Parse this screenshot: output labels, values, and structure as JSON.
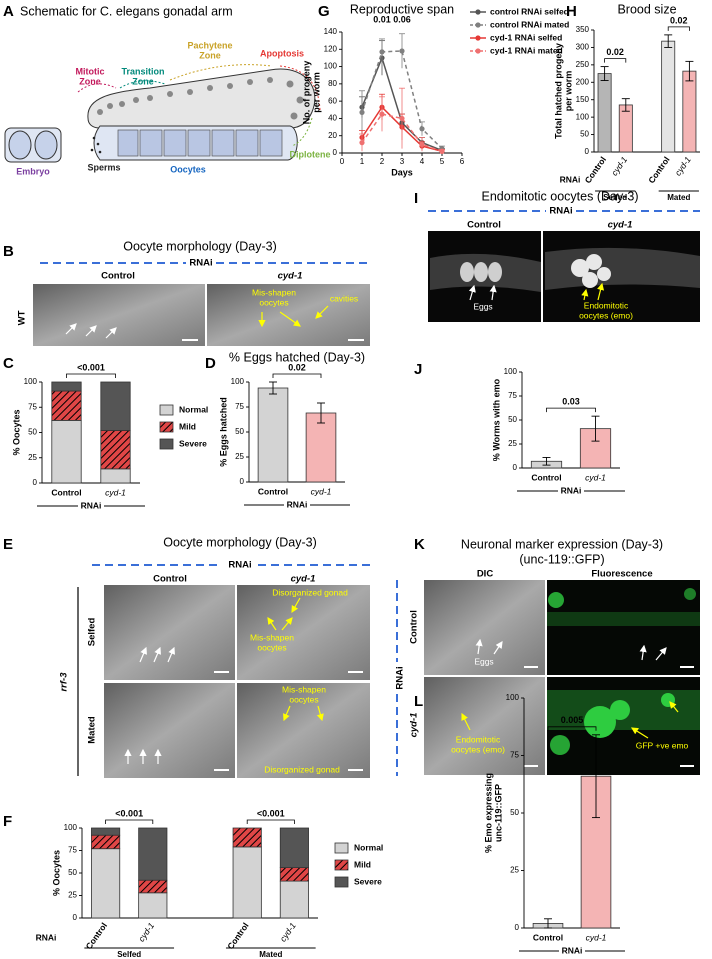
{
  "panel_labels": [
    "A",
    "B",
    "C",
    "D",
    "E",
    "F",
    "G",
    "H",
    "I",
    "J",
    "K",
    "L"
  ],
  "schematic": {
    "title": "Schematic for C. elegans gonadal arm",
    "labels": [
      [
        "Mitotic",
        "Zone"
      ],
      [
        "Transition",
        "Zone"
      ],
      [
        "Pachytene",
        "Zone"
      ],
      [
        "Apoptosis"
      ],
      [
        "Diplotene"
      ],
      [
        "Oocytes"
      ],
      [
        "Sperms"
      ],
      [
        "Embryo"
      ]
    ]
  },
  "panel_b": {
    "title": "Oocyte morphology (Day-3)",
    "rnai": "RNAi",
    "columns": [
      "Control",
      "cyd-1"
    ],
    "row_label": "WT",
    "annotations": [
      [
        "Mis-shapen",
        "oocytes"
      ],
      [
        "cavities"
      ]
    ]
  },
  "panel_i": {
    "title": "Endomitotic oocytes (Day-3)",
    "rnai": "RNAi",
    "columns": [
      "Control",
      "cyd-1"
    ],
    "annotations": [
      [
        "Eggs"
      ],
      [
        "Endomitotic",
        "oocytes (emo)"
      ]
    ]
  },
  "panel_e": {
    "title": "Oocyte morphology (Day-3)",
    "rnai": "RNAi",
    "columns": [
      "Control",
      "cyd-1"
    ],
    "rows": [
      "Selfed",
      "Mated"
    ],
    "strain": "rrf-3",
    "annotations": [
      [
        "Disorganized gonad"
      ],
      [
        "Mis-shapen",
        "oocytes"
      ],
      [
        "Mis-shapen",
        "oocytes"
      ],
      [
        "Disorganized gonad"
      ]
    ]
  },
  "panel_k": {
    "title": "Neuronal marker expression (Day-3)",
    "subtitle": "(unc-119::GFP)",
    "columns": [
      "DIC",
      "Fluorescence"
    ],
    "rows": [
      "Control",
      "cyd-1"
    ],
    "rnai": "RNAi",
    "annotations": [
      [
        "Eggs"
      ],
      [
        "Endomitotic",
        "oocytes (emo)"
      ],
      [
        "GFP +ve emo"
      ]
    ]
  },
  "chart_data": [
    {
      "type": "line",
      "title": "Reproductive span",
      "xlabel": "Days",
      "ylabel": [
        "No. of progeny",
        "per worm"
      ],
      "x": [
        1,
        2,
        3,
        4,
        5
      ],
      "xlim": [
        0,
        6
      ],
      "xticks": [
        0,
        1,
        2,
        3,
        4,
        5,
        6
      ],
      "ylim": [
        0,
        140
      ],
      "yticks": [
        0,
        20,
        40,
        60,
        80,
        100,
        120,
        140
      ],
      "series": [
        {
          "name": "control RNAi selfed",
          "color": "#555555",
          "dashed": false,
          "values": [
            53,
            110,
            35,
            12,
            3
          ],
          "errors": [
            12,
            20,
            10,
            6,
            2
          ]
        },
        {
          "name": "control RNAi mated",
          "color": "#808080",
          "dashed": true,
          "values": [
            47,
            117,
            118,
            28,
            5
          ],
          "errors": [
            25,
            15,
            20,
            8,
            3
          ]
        },
        {
          "name": "cyd-1 RNAi selfed",
          "color": "#e53935",
          "dashed": false,
          "values": [
            18,
            53,
            30,
            8,
            2
          ],
          "errors": [
            8,
            15,
            15,
            5,
            2
          ]
        },
        {
          "name": "cyd-1 RNAi mated",
          "color": "#ef7070",
          "dashed": true,
          "values": [
            12,
            45,
            40,
            10,
            2
          ],
          "errors": [
            10,
            20,
            35,
            8,
            2
          ]
        }
      ],
      "annotations": [
        {
          "text": "0.01",
          "x": 2
        },
        {
          "text": "0.06",
          "x": 3
        }
      ]
    },
    {
      "type": "bar",
      "title": "Brood size",
      "ylabel": [
        "Total hatched progeny",
        "per worm"
      ],
      "categories": [
        "Control",
        "cyd-1",
        "Control",
        "cyd-1"
      ],
      "groups": [
        "Selfed",
        "Mated"
      ],
      "group_label": "RNAi",
      "values": [
        225,
        135,
        318,
        232
      ],
      "errors": [
        20,
        18,
        18,
        28
      ],
      "colors": [
        "#b5b5b5",
        "#f4b4b4",
        "#e4e4e4",
        "#f4b4b4"
      ],
      "ylim": [
        0,
        350
      ],
      "yticks": [
        0,
        50,
        100,
        150,
        200,
        250,
        300,
        350
      ],
      "p_values": [
        "0.02",
        "0.02"
      ]
    },
    {
      "type": "stacked_bar",
      "ylabel": [
        "% Oocytes"
      ],
      "categories": [
        "Control",
        "cyd-1"
      ],
      "group_label": "RNAi",
      "series": [
        {
          "name": "Normal",
          "color": "#d3d3d3",
          "values": [
            62,
            14
          ]
        },
        {
          "name": "Mild",
          "color": "#e04646",
          "hatch": true,
          "values": [
            29,
            38
          ]
        },
        {
          "name": "Severe",
          "color": "#555555",
          "values": [
            9,
            48
          ]
        }
      ],
      "ylim": [
        0,
        100
      ],
      "yticks": [
        0,
        25,
        50,
        75,
        100
      ],
      "p_values": [
        "<0.001"
      ]
    },
    {
      "type": "bar",
      "title": "% Eggs hatched (Day-3)",
      "ylabel": [
        "% Eggs hatched"
      ],
      "categories": [
        "Control",
        "cyd-1"
      ],
      "group_label": "RNAi",
      "values": [
        94,
        69
      ],
      "errors": [
        6,
        10
      ],
      "colors": [
        "#d3d3d3",
        "#f4b4b4"
      ],
      "ylim": [
        0,
        100
      ],
      "yticks": [
        0,
        25,
        50,
        75,
        100
      ],
      "p_values": [
        "0.02"
      ]
    },
    {
      "type": "bar",
      "ylabel": [
        "% Worms with emo"
      ],
      "categories": [
        "Control",
        "cyd-1"
      ],
      "group_label": "RNAi",
      "values": [
        7,
        41
      ],
      "errors": [
        4,
        13
      ],
      "colors": [
        "#d3d3d3",
        "#f4b4b4"
      ],
      "ylim": [
        0,
        100
      ],
      "yticks": [
        0,
        25,
        50,
        75,
        100
      ],
      "p_values": [
        "0.03"
      ]
    },
    {
      "type": "stacked_bar",
      "ylabel": [
        "% Oocytes"
      ],
      "categories": [
        "Control",
        "cyd-1",
        "Control",
        "cyd-1"
      ],
      "groups": [
        "Selfed",
        "Mated"
      ],
      "group_label": "RNAi",
      "series": [
        {
          "name": "Normal",
          "color": "#d3d3d3",
          "values": [
            77,
            28,
            79,
            41
          ]
        },
        {
          "name": "Mild",
          "color": "#e04646",
          "hatch": true,
          "values": [
            15,
            14,
            21,
            15
          ]
        },
        {
          "name": "Severe",
          "color": "#555555",
          "values": [
            8,
            58,
            0,
            44
          ]
        }
      ],
      "ylim": [
        0,
        100
      ],
      "yticks": [
        0,
        25,
        50,
        75,
        100
      ],
      "p_values": [
        "<0.001",
        "<0.001"
      ]
    },
    {
      "type": "bar",
      "ylabel": [
        "% Emo expressing",
        "unc-119::GFP"
      ],
      "categories": [
        "Control",
        "cyd-1"
      ],
      "group_label": "RNAi",
      "values": [
        2,
        66
      ],
      "errors": [
        2,
        18
      ],
      "colors": [
        "#d3d3d3",
        "#f4b4b4"
      ],
      "ylim": [
        0,
        100
      ],
      "yticks": [
        0,
        25,
        50,
        75,
        100
      ],
      "p_values": [
        "0.005"
      ]
    }
  ]
}
